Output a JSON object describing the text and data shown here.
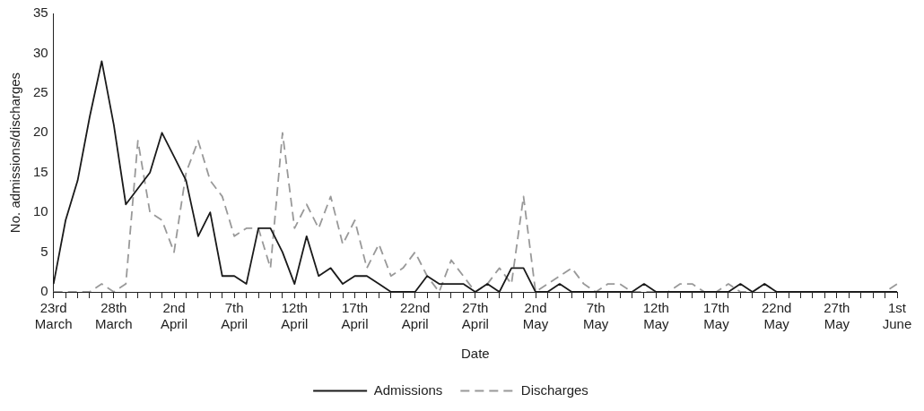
{
  "chart_data": {
    "type": "line",
    "xlabel": "Date",
    "ylabel": "No. admissions/discharges",
    "categories": [
      "23rd March",
      null,
      null,
      null,
      null,
      "28th March",
      null,
      null,
      null,
      null,
      "2nd April",
      null,
      null,
      null,
      null,
      "7th April",
      null,
      null,
      null,
      null,
      "12th April",
      null,
      null,
      null,
      null,
      "17th April",
      null,
      null,
      null,
      null,
      "22nd April",
      null,
      null,
      null,
      null,
      "27th April",
      null,
      null,
      null,
      null,
      "2nd May",
      null,
      null,
      null,
      null,
      "7th May",
      null,
      null,
      null,
      null,
      "12th May",
      null,
      null,
      null,
      null,
      "17th May",
      null,
      null,
      null,
      null,
      "22nd May",
      null,
      null,
      null,
      null,
      "27th May",
      null,
      null,
      null,
      null,
      "1st June"
    ],
    "series": [
      {
        "name": "Admissions",
        "color": "#1a1a1a",
        "line_style": "solid",
        "values": [
          1,
          9,
          14,
          22,
          29,
          21,
          11,
          13,
          15,
          20,
          17,
          14,
          7,
          10,
          2,
          2,
          1,
          8,
          8,
          5,
          1,
          7,
          2,
          3,
          1,
          2,
          2,
          1,
          0,
          0,
          0,
          2,
          1,
          1,
          1,
          0,
          1,
          0,
          3,
          3,
          0,
          0,
          1,
          0,
          0,
          0,
          0,
          0,
          0,
          1,
          0,
          0,
          0,
          0,
          0,
          0,
          0,
          1,
          0,
          1,
          0,
          0,
          0,
          0,
          0,
          0,
          0,
          0,
          0,
          0,
          0
        ]
      },
      {
        "name": "Discharges",
        "color": "#999999",
        "line_style": "dashed",
        "values": [
          0,
          0,
          0,
          0,
          1,
          0,
          1,
          19,
          10,
          9,
          5,
          15,
          19,
          14,
          12,
          7,
          8,
          8,
          3,
          20,
          8,
          11,
          8,
          12,
          6,
          9,
          3,
          6,
          2,
          3,
          5,
          2,
          0,
          4,
          2,
          0,
          1,
          3,
          1,
          12,
          0,
          1,
          2,
          3,
          1,
          0,
          1,
          1,
          0,
          0,
          0,
          0,
          1,
          1,
          0,
          0,
          1,
          0,
          0,
          1,
          0,
          0,
          0,
          0,
          0,
          0,
          0,
          0,
          0,
          0,
          1
        ]
      }
    ],
    "ylim": [
      0,
      35
    ],
    "yticks": [
      0,
      5,
      10,
      15,
      20,
      25,
      30,
      35
    ],
    "grid": false,
    "legend": "bottom",
    "marker": "none"
  }
}
